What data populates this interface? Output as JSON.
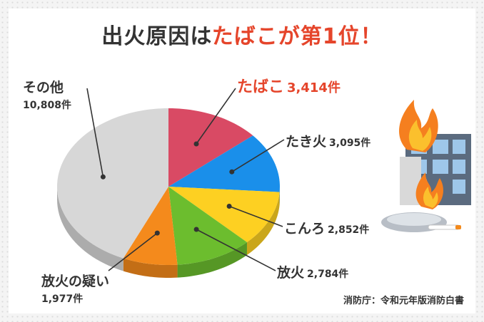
{
  "title": {
    "main": "出火原因は",
    "accent": "たばこが第1位",
    "end": "！"
  },
  "source": "消防庁：令和元年版消防白書",
  "colors": {
    "tobacco": "#d94a64",
    "bonfire": "#1a8fea",
    "stove": "#fdd022",
    "arson": "#6cbd2e",
    "suspected": "#f48a1c",
    "other": "#d7d7d7",
    "highlight": "#e5452b"
  },
  "chart_data": {
    "type": "pie",
    "unit": "件",
    "slices": [
      {
        "key": "tobacco",
        "label": "たばこ",
        "value": 3414,
        "display": "3,414件",
        "color": "#d94a64"
      },
      {
        "key": "bonfire",
        "label": "たき火",
        "value": 3095,
        "display": "3,095件",
        "color": "#1a8fea"
      },
      {
        "key": "stove",
        "label": "こんろ",
        "value": 2852,
        "display": "2,852件",
        "color": "#fdd022"
      },
      {
        "key": "arson",
        "label": "放火",
        "value": 2784,
        "display": "2,784件",
        "color": "#6cbd2e"
      },
      {
        "key": "suspected",
        "label": "放火の疑い",
        "value": 1977,
        "display": "1,977件",
        "color": "#f48a1c"
      },
      {
        "key": "other",
        "label": "その他",
        "value": 10808,
        "display": "10,808件",
        "color": "#d7d7d7"
      }
    ]
  }
}
